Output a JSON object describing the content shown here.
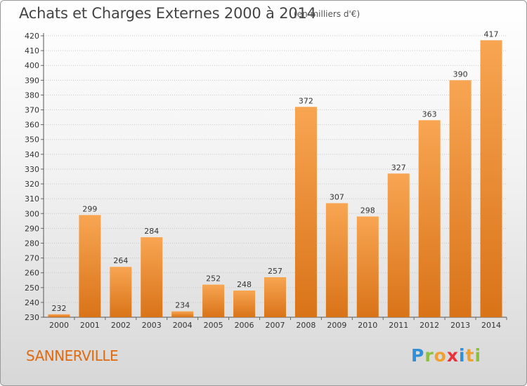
{
  "title": "Achats et Charges Externes 2000 à 2014",
  "unit_note": "(en milliers d'€)",
  "place": "SANNERVILLE",
  "brand": {
    "letters": [
      "P",
      "r",
      "o",
      "x",
      "i",
      "t",
      "i"
    ],
    "colors": [
      "#2f8fd8",
      "#8dc03f",
      "#f0a030",
      "#e8313a",
      "#2f8fd8",
      "#f0a030",
      "#8dc03f"
    ]
  },
  "colors": {
    "bar_light": "#f8a552",
    "bar_dark": "#d97318",
    "grid": "#c8c8c8",
    "text": "#333333"
  },
  "chart_data": {
    "type": "bar",
    "title": "Achats et Charges Externes 2000 à 2014",
    "categories": [
      "2000",
      "2001",
      "2002",
      "2003",
      "2004",
      "2005",
      "2006",
      "2007",
      "2008",
      "2009",
      "2010",
      "2011",
      "2012",
      "2013",
      "2014"
    ],
    "values": [
      232,
      299,
      264,
      284,
      234,
      252,
      248,
      257,
      372,
      307,
      298,
      327,
      363,
      390,
      417
    ],
    "xlabel": "",
    "ylabel": "",
    "ylim": [
      230,
      420
    ],
    "yticks": [
      230,
      240,
      250,
      260,
      270,
      280,
      290,
      300,
      310,
      320,
      330,
      340,
      350,
      360,
      370,
      380,
      390,
      400,
      410,
      420
    ],
    "grid": true,
    "legend": "none"
  }
}
